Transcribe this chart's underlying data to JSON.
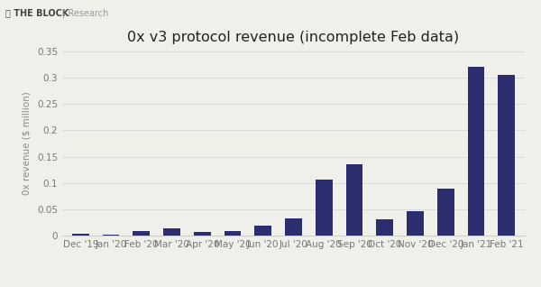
{
  "title": "0x v3 protocol revenue (incomplete Feb data)",
  "xlabel": "",
  "ylabel": "0x revenue ($ million)",
  "ylim": [
    0,
    0.35
  ],
  "yticks": [
    0,
    0.05,
    0.1,
    0.15,
    0.2,
    0.25,
    0.3,
    0.35
  ],
  "ytick_labels": [
    "0",
    "0.05",
    "0.1",
    "0.15",
    "0.2",
    "0.25",
    "0.3",
    "0.35"
  ],
  "categories": [
    "Dec '19",
    "Jan '20",
    "Feb '20",
    "Mar '20",
    "Apr '20",
    "May '20",
    "Jun '20",
    "Jul '20",
    "Aug '20",
    "Sep '20",
    "Oct '20",
    "Nov '20",
    "Dec '20",
    "Jan '21",
    "Feb '21"
  ],
  "values": [
    0.003,
    0.002,
    0.008,
    0.013,
    0.007,
    0.009,
    0.018,
    0.033,
    0.106,
    0.135,
    0.031,
    0.046,
    0.089,
    0.322,
    0.306
  ],
  "bar_color": "#2b2d6e",
  "background_color": "#f0f0eb",
  "title_fontsize": 11.5,
  "label_fontsize": 7.5,
  "tick_fontsize": 7.5,
  "grid_color": "#d8d8d8",
  "bar_width": 0.55,
  "header_logo": "Ⓑ THE BLOCK",
  "header_sub": "| Research"
}
